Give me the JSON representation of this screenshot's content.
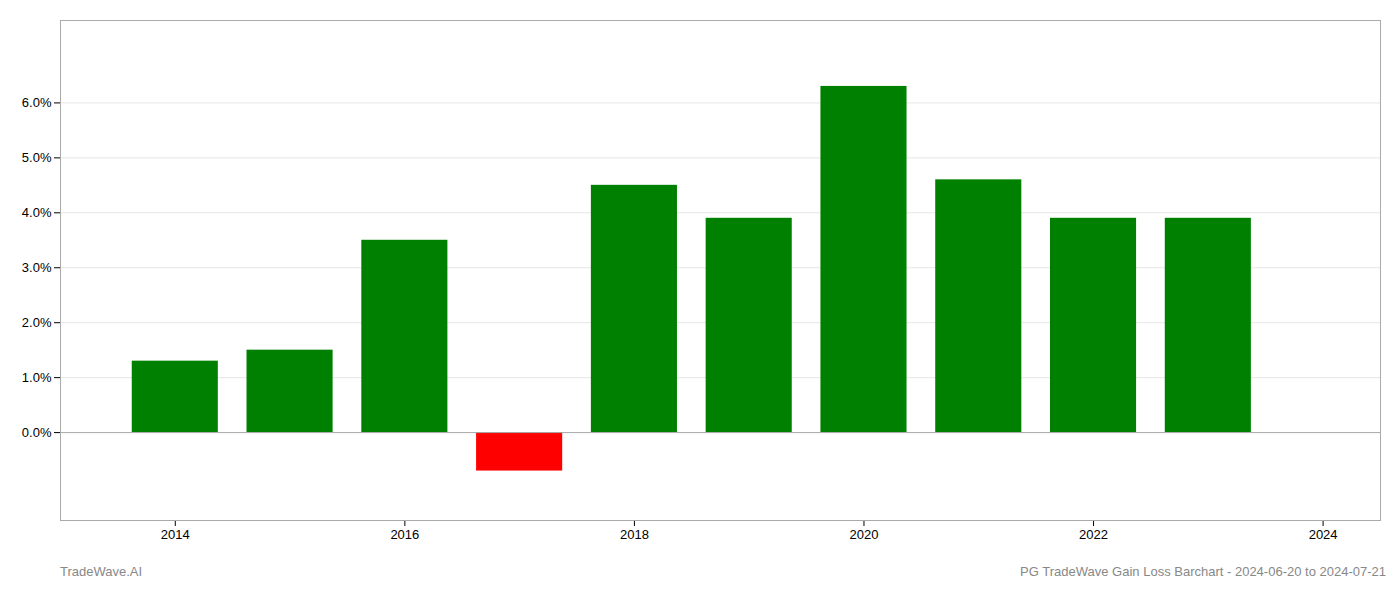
{
  "chart_data": {
    "type": "bar",
    "x": [
      2014,
      2015,
      2016,
      2017,
      2018,
      2019,
      2020,
      2021,
      2022,
      2023
    ],
    "values": [
      0.013,
      0.015,
      0.035,
      -0.007,
      0.045,
      0.039,
      0.063,
      0.046,
      0.039,
      0.039
    ],
    "colors": [
      "#008000",
      "#008000",
      "#008000",
      "#ff0000",
      "#008000",
      "#008000",
      "#008000",
      "#008000",
      "#008000",
      "#008000"
    ],
    "xlim": [
      2013.0,
      2024.5
    ],
    "xticks": [
      2014,
      2016,
      2018,
      2020,
      2022,
      2024
    ],
    "ylim": [
      -0.016,
      0.075
    ],
    "yticks": [
      {
        "value": 0.0,
        "label": "0.0%"
      },
      {
        "value": 0.01,
        "label": "1.0%"
      },
      {
        "value": 0.02,
        "label": "2.0%"
      },
      {
        "value": 0.03,
        "label": "3.0%"
      },
      {
        "value": 0.04,
        "label": "4.0%"
      },
      {
        "value": 0.05,
        "label": "5.0%"
      },
      {
        "value": 0.06,
        "label": "6.0%"
      }
    ],
    "grid": true,
    "annotations": [
      "TradeWave.AI",
      "PG TradeWave Gain Loss Barchart - 2024-06-20 to 2024-07-21"
    ]
  }
}
